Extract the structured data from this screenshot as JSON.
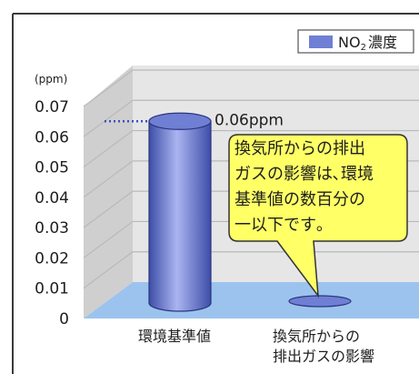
{
  "chart_data": {
    "type": "bar",
    "unit": "(ppm)",
    "categories": [
      {
        "line1": "環境基準値",
        "line2": ""
      },
      {
        "line1": "換気所からの",
        "line2": "排出ガスの影響"
      }
    ],
    "values": [
      0.06,
      0.0006
    ],
    "ylim": [
      0,
      0.07
    ],
    "yticks": [
      "0",
      "0.01",
      "0.02",
      "0.03",
      "0.04",
      "0.05",
      "0.06",
      "0.07"
    ],
    "legend": {
      "main": "NO",
      "sub": "2",
      "suffix": "濃度",
      "position": "top-right"
    },
    "annotation": "0.06ppm",
    "callout": [
      "換気所からの排出",
      "ガスの影響は､環境",
      "基準値の数百分の",
      "一以下です｡"
    ],
    "grid": true
  },
  "colors": {
    "bar": "#6f7fd4",
    "bar_dark": "#3e4ea8",
    "bar_light": "#aab5f0",
    "floor": "#9cc3ee",
    "callout": "#ffff66",
    "dotted": "#3b4fc0"
  }
}
